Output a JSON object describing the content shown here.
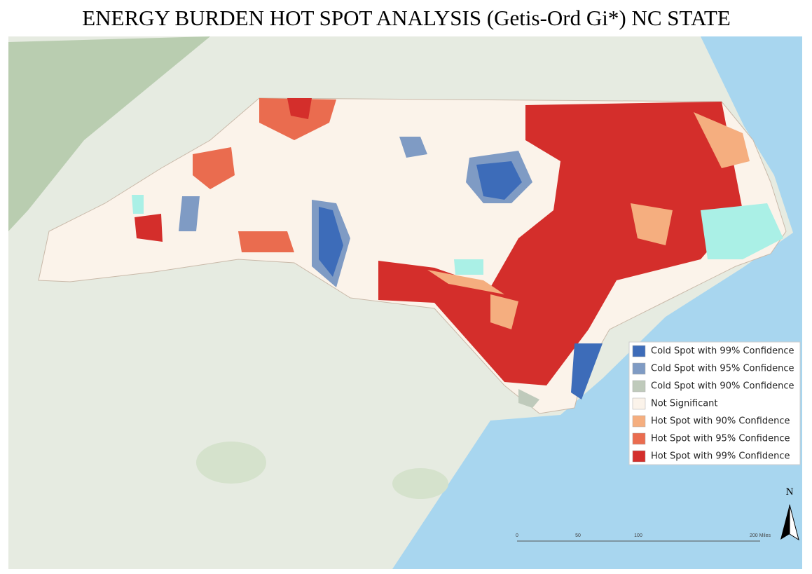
{
  "title": "ENERGY BURDEN HOT SPOT ANALYSIS (Getis-Ord Gi*) NC STATE",
  "legend": [
    {
      "label": "Cold Spot with 99% Confidence",
      "color": "#3d6cb9"
    },
    {
      "label": "Cold Spot with 95% Confidence",
      "color": "#7f9bc4"
    },
    {
      "label": "Cold Spot with 90% Confidence",
      "color": "#bfcabb"
    },
    {
      "label": "Not Significant",
      "color": "#fbf3ea"
    },
    {
      "label": "Hot Spot with 90% Confidence",
      "color": "#f5ae7f"
    },
    {
      "label": "Hot Spot with 95% Confidence",
      "color": "#ea6c4f"
    },
    {
      "label": "Hot Spot with 99% Confidence",
      "color": "#d42e2b"
    }
  ],
  "north_arrow": "N",
  "scale_bar": [
    "0",
    "50",
    "100",
    "200 Miles"
  ]
}
